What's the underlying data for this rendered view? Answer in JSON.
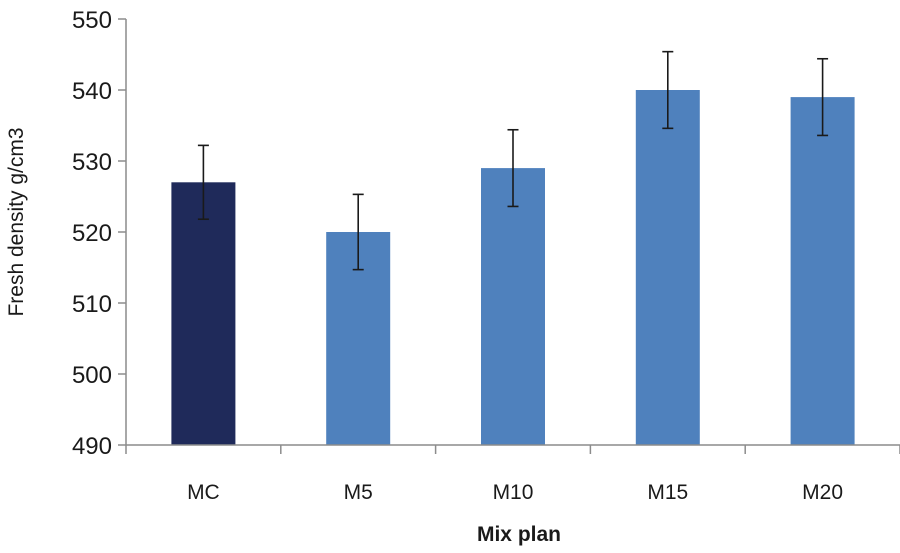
{
  "chart_data": {
    "type": "bar",
    "title": "",
    "xlabel": "Mix plan",
    "ylabel": "Fresh density g/cm3",
    "ylim": [
      490,
      550
    ],
    "yticks": [
      490,
      500,
      510,
      520,
      530,
      540,
      550
    ],
    "categories": [
      "MC",
      "M5",
      "M10",
      "M15",
      "M20"
    ],
    "values": [
      527,
      520,
      529,
      540,
      539
    ],
    "errors": [
      5.2,
      5.3,
      5.4,
      5.4,
      5.4
    ],
    "colors": [
      "#1f2a5a",
      "#4f81bd",
      "#4f81bd",
      "#4f81bd",
      "#4f81bd"
    ],
    "grid": false,
    "legend": false
  }
}
